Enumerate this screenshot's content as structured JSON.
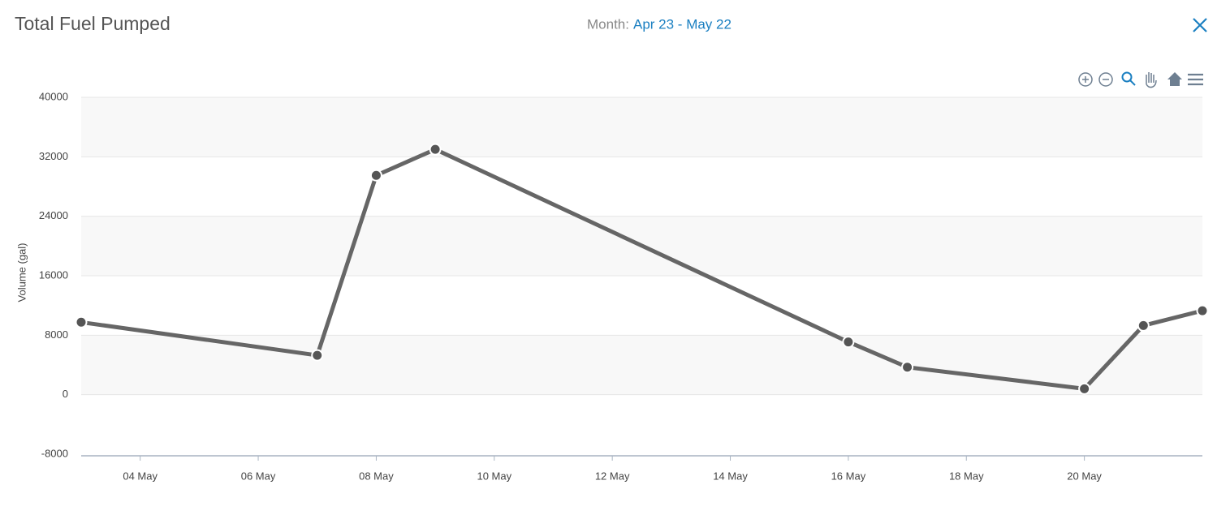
{
  "header": {
    "title": "Total Fuel Pumped",
    "period_label": "Month:",
    "period": "Apr 23 - May 22"
  },
  "chart_data": {
    "type": "line",
    "y_label": "Volume (gal)",
    "x": [
      "03 May",
      "07 May",
      "08 May",
      "09 May",
      "16 May",
      "17 May",
      "20 May",
      "21 May",
      "22 May"
    ],
    "values": [
      9750,
      5300,
      29500,
      33000,
      7100,
      3700,
      800,
      9300,
      11300
    ],
    "color": "#666666",
    "xlim": [
      "03 May",
      "22 May"
    ],
    "xticks": [
      "04 May",
      "06 May",
      "08 May",
      "10 May",
      "12 May",
      "14 May",
      "16 May",
      "18 May",
      "20 May"
    ],
    "ylim": [
      -8000,
      40000
    ],
    "yticks": [
      -8000,
      0,
      8000,
      16000,
      24000,
      32000,
      40000
    ],
    "grid": true
  }
}
